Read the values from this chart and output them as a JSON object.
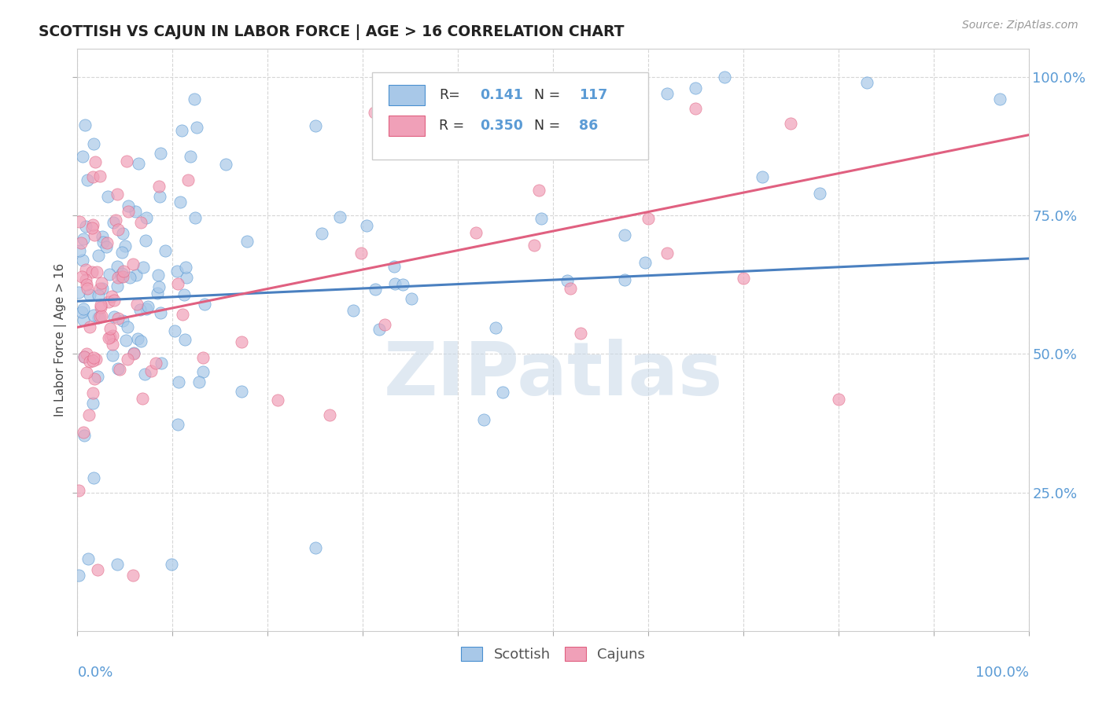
{
  "title": "SCOTTISH VS CAJUN IN LABOR FORCE | AGE > 16 CORRELATION CHART",
  "source_text": "Source: ZipAtlas.com",
  "ylabel": "In Labor Force | Age > 16",
  "legend_label_blue": "Scottish",
  "legend_label_pink": "Cajuns",
  "R_blue": "0.141",
  "N_blue": "117",
  "R_pink": "0.350",
  "N_pink": "86",
  "color_blue": "#a8c8e8",
  "color_pink": "#f0a0b8",
  "color_blue_dark": "#4a90d0",
  "color_pink_dark": "#e06080",
  "color_blue_text": "#5b9bd5",
  "color_pink_text": "#e05080",
  "line_blue": "#4a80c0",
  "line_pink": "#e06080",
  "background": "#ffffff",
  "grid_color": "#cccccc",
  "xlim": [
    0,
    1
  ],
  "ylim": [
    0,
    1.05
  ],
  "yticks": [
    0.25,
    0.5,
    0.75,
    1.0
  ],
  "ytick_labels": [
    "25.0%",
    "50.0%",
    "75.0%",
    "100.0%"
  ],
  "blue_line_y0": 0.595,
  "blue_line_y1": 0.672,
  "pink_line_y0": 0.548,
  "pink_line_y1": 0.895,
  "watermark": "ZIPatlas",
  "watermark_color": "#c8d8e8"
}
